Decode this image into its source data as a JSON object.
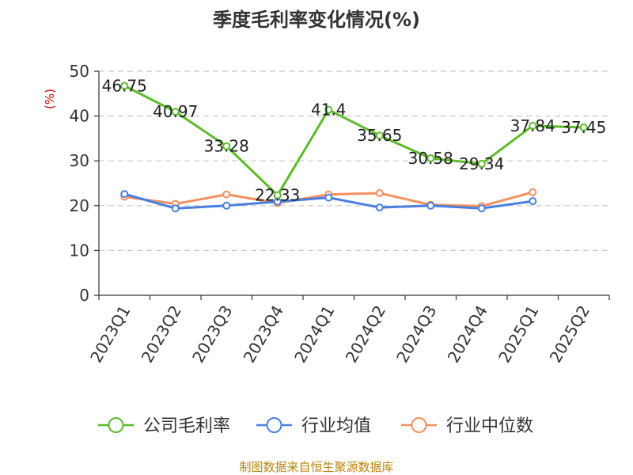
{
  "colors": {
    "company": "#5dbb2a",
    "industry_avg": "#4a7fe0",
    "industry_median": "#f5905f",
    "grid": "#c8c8c8",
    "axis": "#333333",
    "ylabel": "#cc0000",
    "source": "#b8860b"
  },
  "chart_data": {
    "type": "line",
    "title": "季度毛利率变化情况(%)",
    "ylabel": "(%)",
    "xlabel": "",
    "ylim": [
      0,
      50
    ],
    "yticks": [
      0,
      10,
      20,
      30,
      40,
      50
    ],
    "grid": true,
    "legend_position": "bottom",
    "categories": [
      "2023Q1",
      "2023Q2",
      "2023Q3",
      "2023Q4",
      "2024Q1",
      "2024Q2",
      "2024Q3",
      "2024Q4",
      "2025Q1",
      "2025Q2"
    ],
    "series": [
      {
        "name": "公司毛利率",
        "color": "#5dbb2a",
        "values": [
          46.75,
          40.97,
          33.28,
          22.33,
          41.4,
          35.65,
          30.58,
          29.34,
          37.84,
          37.45
        ],
        "labels": [
          "46.75",
          "40.97",
          "33.28",
          "22.33",
          "41.4",
          "35.65",
          "30.58",
          "29.34",
          "37.84",
          "37.45"
        ]
      },
      {
        "name": "行业均值",
        "color": "#4a7fe0",
        "values": [
          22.6,
          19.4,
          20.0,
          20.9,
          21.8,
          19.6,
          20.0,
          19.4,
          21.0,
          null
        ]
      },
      {
        "name": "行业中位数",
        "color": "#f5905f",
        "values": [
          22.0,
          20.4,
          22.5,
          20.6,
          22.5,
          22.8,
          20.2,
          19.9,
          23.0,
          null
        ]
      }
    ]
  },
  "source_text": "制图数据来自恒生聚源数据库"
}
